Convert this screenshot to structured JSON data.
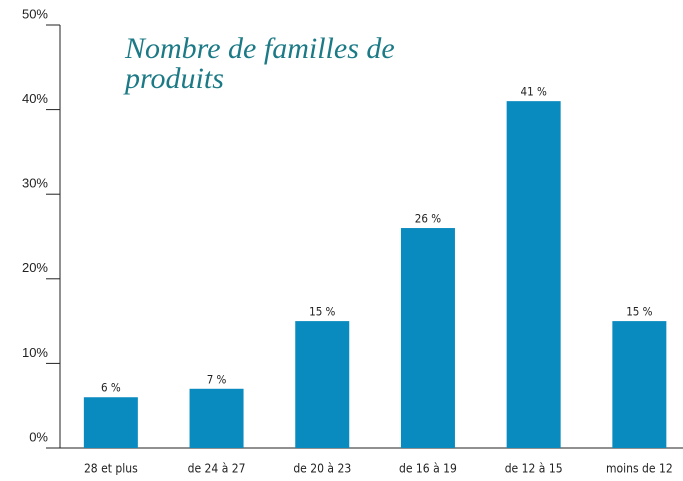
{
  "chart_data": {
    "type": "bar",
    "title": "Nombre de familles de produits",
    "categories": [
      "28 et plus",
      "de 24 à 27",
      "de 20 à 23",
      "de 16 à 19",
      "de 12 à 15",
      "moins de 12"
    ],
    "values": [
      6,
      7,
      15,
      26,
      41,
      15
    ],
    "value_labels": [
      "6 %",
      "7 %",
      "15 %",
      "26 %",
      "41 %",
      "15 %"
    ],
    "color": "#0a8bbf",
    "ylim": [
      0,
      50
    ],
    "yticks": [
      {
        "value": 0,
        "label": "0%"
      },
      {
        "value": 10,
        "label": "10%"
      },
      {
        "value": 20,
        "label": "20%"
      },
      {
        "value": 30,
        "label": "30%"
      },
      {
        "value": 40,
        "label": "40%"
      },
      {
        "value": 50,
        "label": "50%"
      }
    ]
  }
}
